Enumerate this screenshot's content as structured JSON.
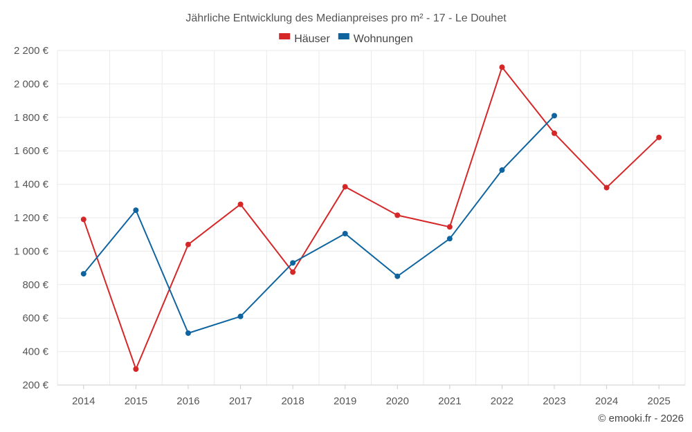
{
  "chart_data": {
    "type": "line",
    "title": "Jährliche Entwicklung des Medianpreises pro m² - 17 - Le Douhet",
    "categories": [
      "2014",
      "2015",
      "2016",
      "2017",
      "2018",
      "2019",
      "2020",
      "2021",
      "2022",
      "2023",
      "2024",
      "2025"
    ],
    "series": [
      {
        "name": "Häuser",
        "color": "#d62728",
        "values": [
          1190,
          295,
          1040,
          1280,
          875,
          1385,
          1215,
          1145,
          2100,
          1705,
          1380,
          1680
        ]
      },
      {
        "name": "Wohnungen",
        "color": "#0f649f",
        "values": [
          865,
          1245,
          510,
          610,
          930,
          1105,
          850,
          1075,
          1485,
          1810,
          null,
          null
        ]
      }
    ],
    "yticks": [
      200,
      400,
      600,
      800,
      1000,
      1200,
      1400,
      1600,
      1800,
      2000,
      2200
    ],
    "ytick_labels": [
      "200 €",
      "400 €",
      "600 €",
      "800 €",
      "1 000 €",
      "1 200 €",
      "1 400 €",
      "1 600 €",
      "1 800 €",
      "2 000 €",
      "2 200 €"
    ],
    "ylim": [
      200,
      2200
    ],
    "xlabel": "",
    "ylabel": "",
    "grid": true,
    "legend_position": "top-center"
  },
  "credit": "© emooki.fr - 2026"
}
